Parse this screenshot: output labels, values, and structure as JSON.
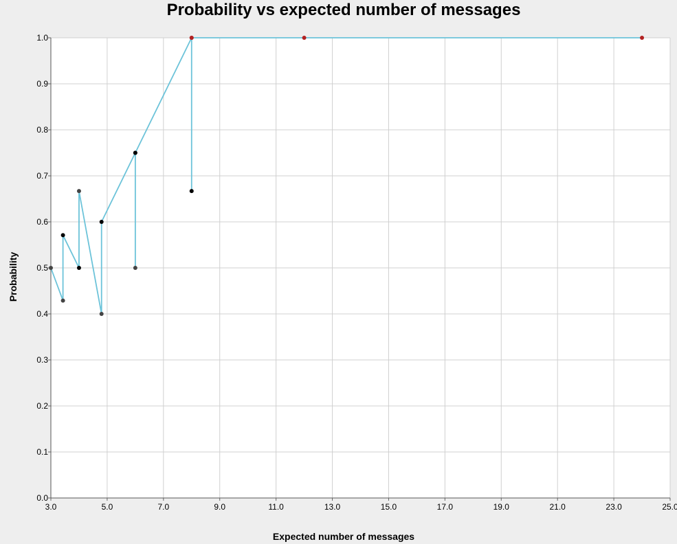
{
  "chart_data": {
    "type": "line",
    "title": "Probability vs expected number of messages",
    "xlabel": "Expected number of messages",
    "ylabel": "Probability",
    "xlim": [
      3.0,
      25.0
    ],
    "ylim": [
      0.0,
      1.0
    ],
    "x_ticks": [
      "3.0",
      "5.0",
      "7.0",
      "9.0",
      "11.0",
      "13.0",
      "15.0",
      "17.0",
      "19.0",
      "21.0",
      "23.0",
      "25.0"
    ],
    "y_ticks": [
      "0.0",
      "0.1",
      "0.2",
      "0.3",
      "0.4",
      "0.5",
      "0.6",
      "0.7",
      "0.8",
      "0.9",
      "1.0"
    ],
    "grid": true,
    "line_color": "#6cc3d9",
    "series": [
      {
        "points": [
          {
            "x": 3.0,
            "y": 0.5,
            "color": "#444444"
          },
          {
            "x": 3.43,
            "y": 0.429,
            "color": "#444444"
          },
          {
            "x": 3.43,
            "y": 0.571,
            "color": "#000000"
          },
          {
            "x": 4.0,
            "y": 0.5,
            "color": "#000000"
          },
          {
            "x": 4.0,
            "y": 0.667,
            "color": "#444444"
          },
          {
            "x": 4.8,
            "y": 0.4,
            "color": "#444444"
          },
          {
            "x": 4.8,
            "y": 0.6,
            "color": "#000000"
          },
          {
            "x": 6.0,
            "y": 0.75,
            "color": "#000000"
          },
          {
            "x": 6.0,
            "y": 0.5,
            "color": "#444444"
          },
          {
            "x": 6.0,
            "y": 0.75,
            "color": "#000000"
          },
          {
            "x": 8.0,
            "y": 1.0,
            "color": "#b22222"
          },
          {
            "x": 8.0,
            "y": 0.667,
            "color": "#000000"
          },
          {
            "x": 8.0,
            "y": 1.0,
            "color": "#b22222"
          },
          {
            "x": 12.0,
            "y": 1.0,
            "color": "#b22222"
          },
          {
            "x": 24.0,
            "y": 1.0,
            "color": "#b22222"
          }
        ]
      }
    ]
  }
}
